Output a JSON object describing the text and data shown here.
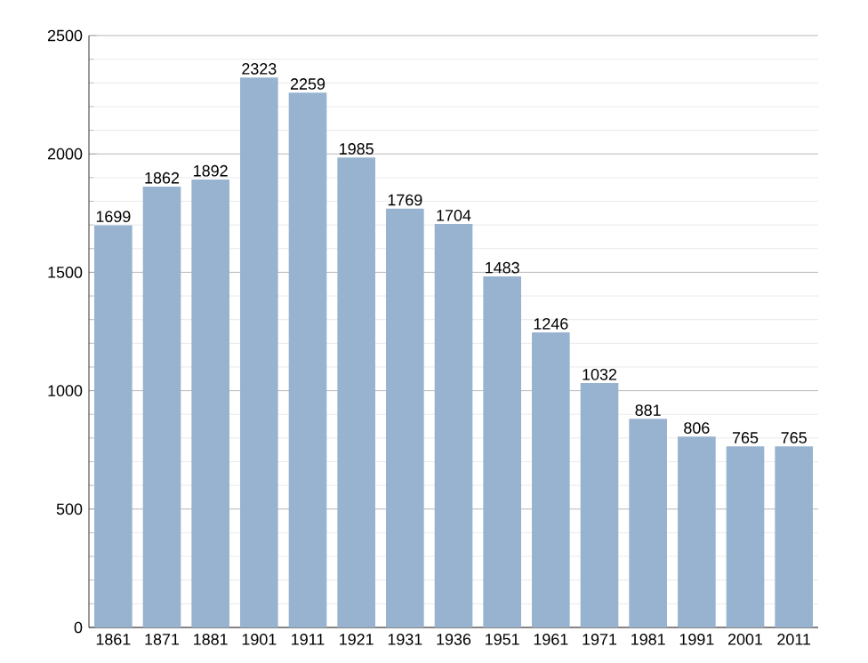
{
  "chart_data": {
    "type": "bar",
    "categories": [
      "1861",
      "1871",
      "1881",
      "1901",
      "1911",
      "1921",
      "1931",
      "1936",
      "1951",
      "1961",
      "1971",
      "1981",
      "1991",
      "2001",
      "2011"
    ],
    "values": [
      1699,
      1862,
      1892,
      2323,
      2259,
      1985,
      1769,
      1704,
      1483,
      1246,
      1032,
      881,
      806,
      765,
      765
    ],
    "color": "#97b3cf",
    "ylim": [
      0,
      2500
    ],
    "yticks": [
      0,
      500,
      1000,
      1500,
      2000,
      2500
    ],
    "grid": "y",
    "data_labels": true
  }
}
